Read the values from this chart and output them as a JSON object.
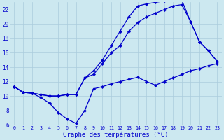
{
  "title": "Graphe des températures (°C)",
  "bg_color": "#cce8f0",
  "grid_color": "#aaccdd",
  "line_color": "#0000cc",
  "xmin": 0,
  "xmax": 23,
  "ymin": 6,
  "ymax": 23,
  "yticks": [
    6,
    8,
    10,
    12,
    14,
    16,
    18,
    20,
    22
  ],
  "xticks": [
    0,
    1,
    2,
    3,
    4,
    5,
    6,
    7,
    8,
    9,
    10,
    11,
    12,
    13,
    14,
    15,
    16,
    17,
    18,
    19,
    20,
    21,
    22,
    23
  ],
  "line1_x": [
    0,
    1,
    2,
    3,
    4,
    5,
    6,
    7,
    8,
    9,
    10,
    11,
    12,
    13,
    14,
    15,
    16,
    17,
    18,
    19,
    20,
    21,
    22,
    23
  ],
  "line1_y": [
    11.3,
    10.5,
    10.4,
    9.8,
    9.0,
    7.7,
    6.8,
    6.2,
    8.0,
    11.0,
    11.3,
    11.7,
    12.0,
    12.3,
    12.6,
    12.0,
    11.5,
    12.0,
    12.5,
    13.0,
    13.5,
    13.8,
    14.2,
    14.5
  ],
  "line2_x": [
    0,
    1,
    2,
    3,
    4,
    5,
    6,
    7,
    8,
    9,
    10,
    11,
    12,
    13,
    14,
    15,
    16,
    17,
    18,
    19,
    20,
    21,
    22,
    23
  ],
  "line2_y": [
    11.3,
    10.5,
    10.4,
    10.2,
    10.0,
    10.0,
    10.2,
    10.2,
    12.5,
    13.0,
    14.5,
    16.0,
    17.0,
    19.0,
    20.2,
    21.0,
    21.5,
    22.0,
    22.5,
    22.7,
    20.3,
    17.5,
    16.3,
    14.8
  ],
  "line3_x": [
    0,
    1,
    2,
    3,
    4,
    5,
    6,
    7,
    8,
    9,
    10,
    11,
    12,
    13,
    14,
    15,
    16,
    17,
    18,
    19,
    20,
    21,
    22,
    23
  ],
  "line3_y": [
    11.3,
    10.5,
    10.4,
    10.2,
    10.0,
    10.0,
    10.2,
    10.2,
    12.5,
    13.5,
    15.0,
    17.0,
    19.0,
    21.0,
    22.5,
    22.8,
    23.0,
    23.2,
    23.3,
    23.3,
    20.3,
    17.5,
    16.3,
    14.8
  ]
}
